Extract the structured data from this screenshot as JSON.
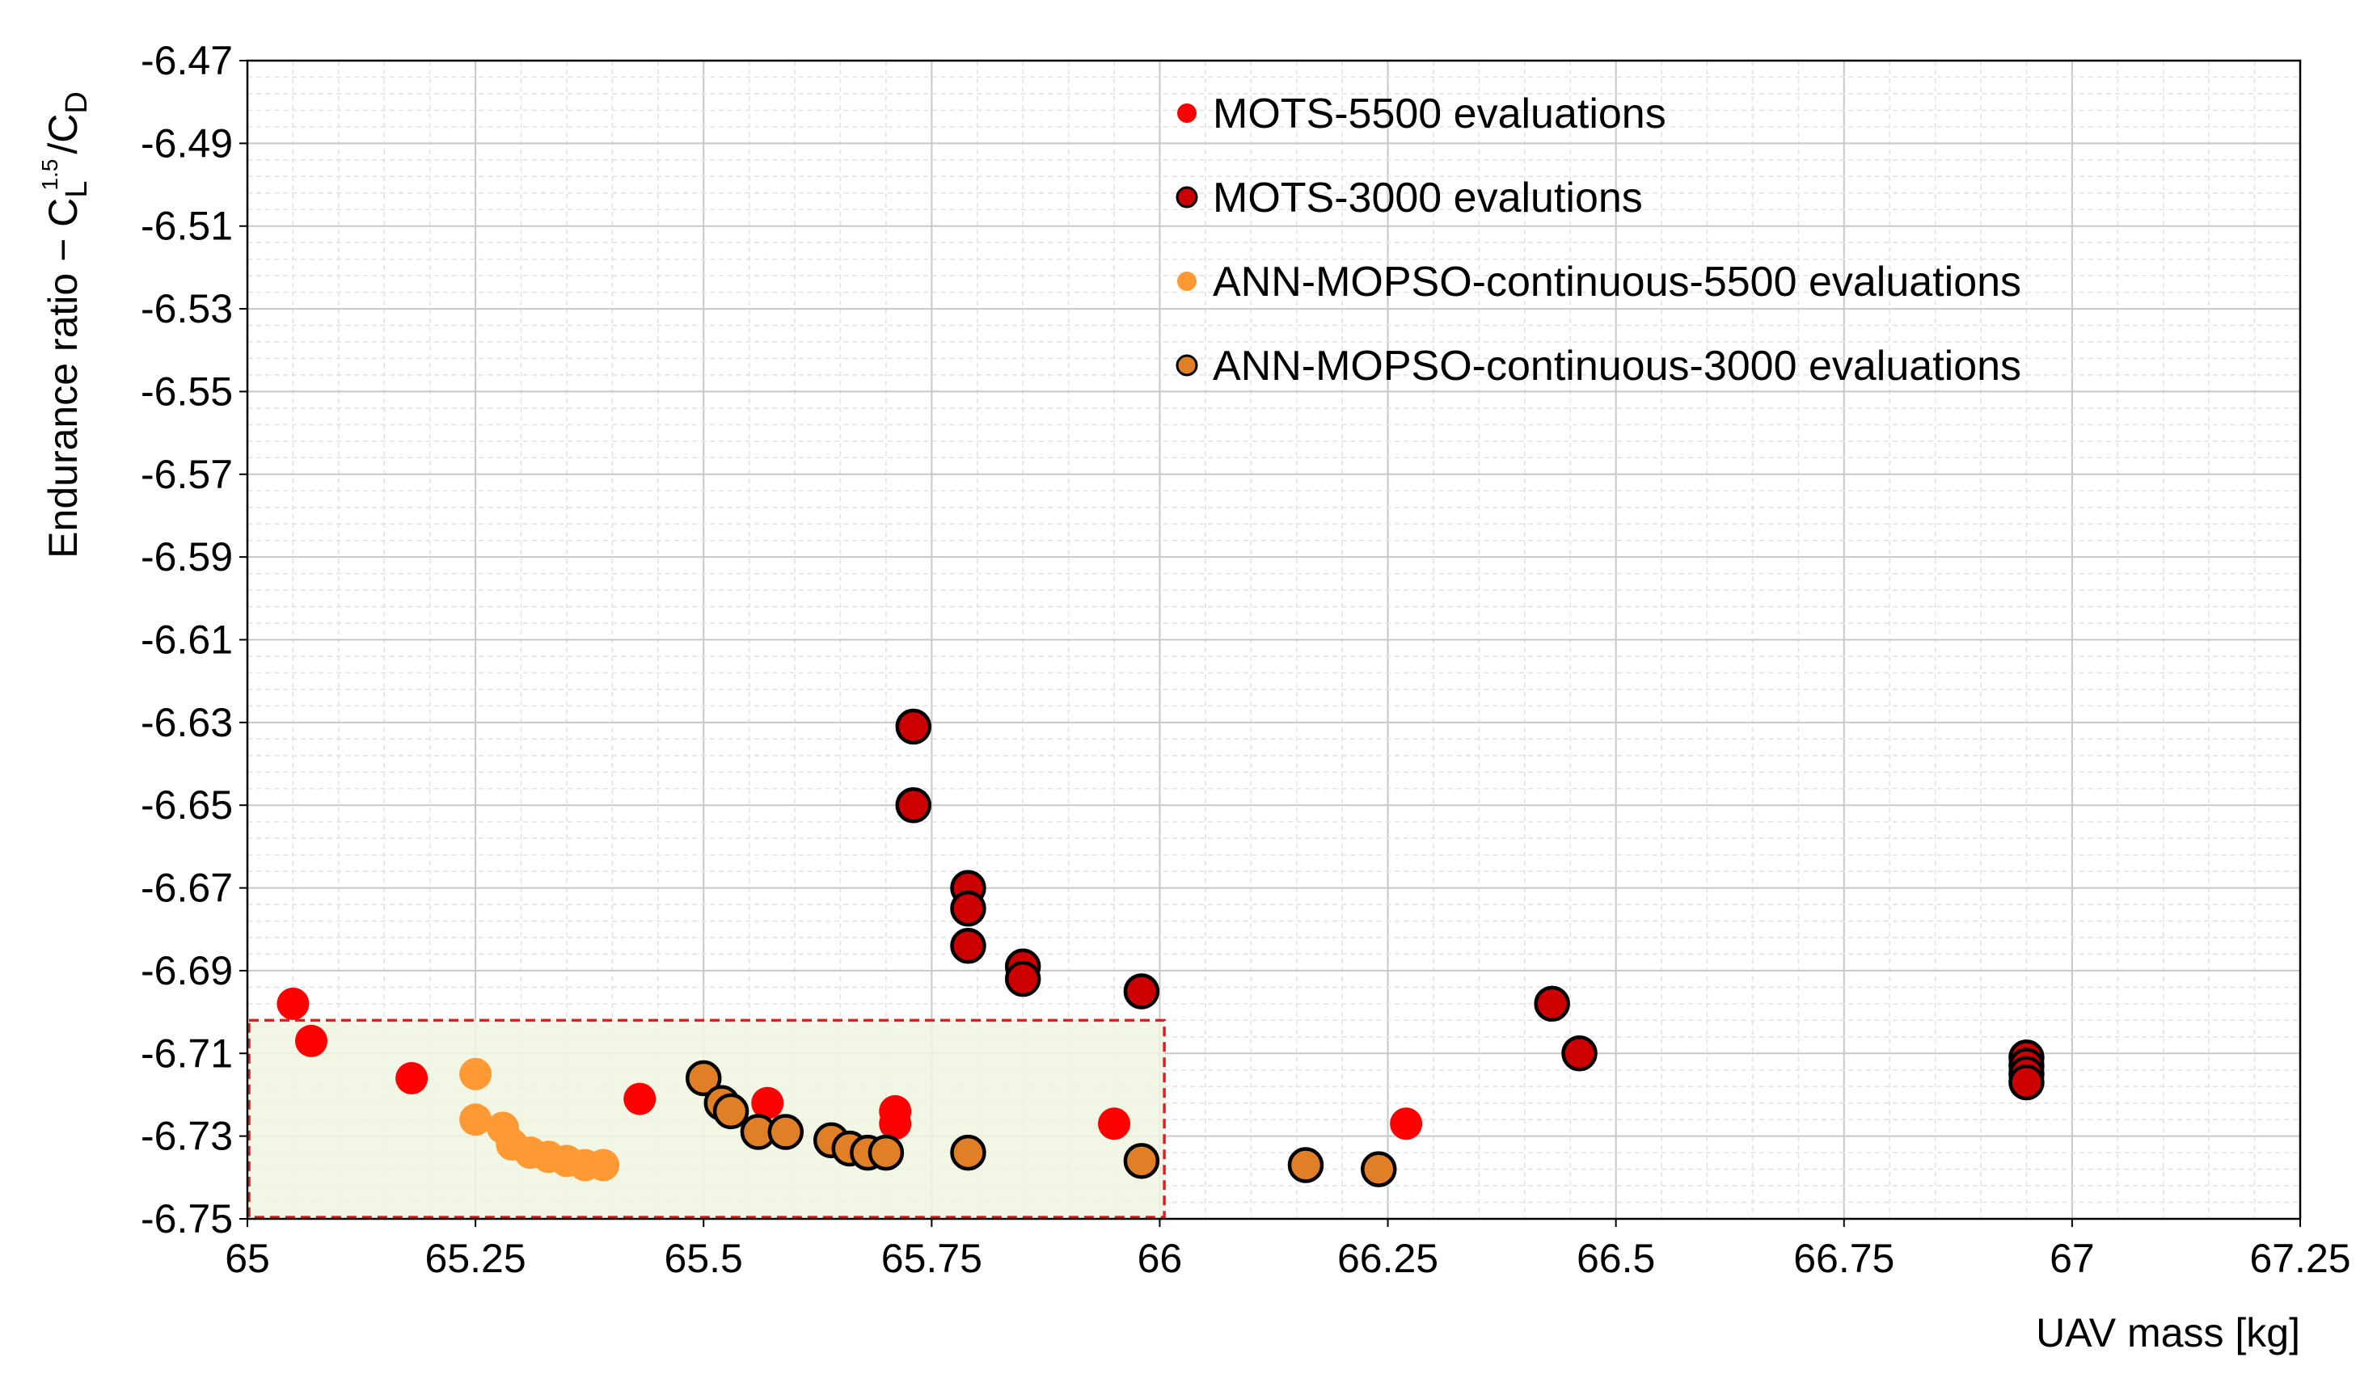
{
  "chart_data": {
    "type": "scatter",
    "title": "",
    "xlabel": "UAV mass [kg]",
    "ylabel": {
      "prefix": "Endurance ratio − C",
      "sub_l": "L",
      "sup": "1.5",
      "mid": "/C",
      "sub_d": "D"
    },
    "xlim": [
      65,
      67.25
    ],
    "ylim": [
      -6.75,
      -6.47
    ],
    "x_ticks": [
      {
        "value": 65,
        "label": "65"
      },
      {
        "value": 65.25,
        "label": "65.25"
      },
      {
        "value": 65.5,
        "label": "65.5"
      },
      {
        "value": 65.75,
        "label": "65.75"
      },
      {
        "value": 66,
        "label": "66"
      },
      {
        "value": 66.25,
        "label": "66.25"
      },
      {
        "value": 66.5,
        "label": "66.5"
      },
      {
        "value": 66.75,
        "label": "66.75"
      },
      {
        "value": 67,
        "label": "67"
      },
      {
        "value": 67.25,
        "label": "67.25"
      }
    ],
    "y_ticks": [
      {
        "value": -6.47,
        "label": "-6.47"
      },
      {
        "value": -6.49,
        "label": "-6.49"
      },
      {
        "value": -6.51,
        "label": "-6.51"
      },
      {
        "value": -6.53,
        "label": "-6.53"
      },
      {
        "value": -6.55,
        "label": "-6.55"
      },
      {
        "value": -6.57,
        "label": "-6.57"
      },
      {
        "value": -6.59,
        "label": "-6.59"
      },
      {
        "value": -6.61,
        "label": "-6.61"
      },
      {
        "value": -6.63,
        "label": "-6.63"
      },
      {
        "value": -6.65,
        "label": "-6.65"
      },
      {
        "value": -6.67,
        "label": "-6.67"
      },
      {
        "value": -6.69,
        "label": "-6.69"
      },
      {
        "value": -6.71,
        "label": "-6.71"
      },
      {
        "value": -6.73,
        "label": "-6.73"
      },
      {
        "value": -6.75,
        "label": "-6.75"
      }
    ],
    "grid": {
      "major": true,
      "minor": true
    },
    "highlight_region": {
      "x": [
        65,
        66.005
      ],
      "y": [
        -6.75,
        -6.702
      ],
      "fill": "#eef5e0",
      "stroke": "#e01f1f"
    },
    "legend_position": "top-right",
    "series": [
      {
        "name": "MOTS-5500 evaluations",
        "color": "#ff0000",
        "outlined": false,
        "x": [
          65.05,
          65.07,
          65.18,
          65.43,
          65.57,
          65.71,
          65.71,
          65.95,
          66.27
        ],
        "y": [
          -6.698,
          -6.707,
          -6.716,
          -6.721,
          -6.722,
          -6.724,
          -6.727,
          -6.727,
          -6.727
        ]
      },
      {
        "name": "MOTS-3000 evalutions",
        "color": "#cc0000",
        "outlined": true,
        "x": [
          65.73,
          65.73,
          65.79,
          65.79,
          65.79,
          65.85,
          65.85,
          65.98,
          66.43,
          66.46,
          66.95,
          66.95,
          66.95,
          66.95
        ],
        "y": [
          -6.631,
          -6.65,
          -6.67,
          -6.675,
          -6.684,
          -6.689,
          -6.692,
          -6.695,
          -6.698,
          -6.71,
          -6.711,
          -6.713,
          -6.715,
          -6.717
        ]
      },
      {
        "name": "ANN-MOPSO-continuous-5500 evaluations",
        "color": "#ff9933",
        "outlined": false,
        "x": [
          65.25,
          65.25,
          65.28,
          65.29,
          65.31,
          65.33,
          65.35,
          65.37,
          65.39
        ],
        "y": [
          -6.715,
          -6.726,
          -6.728,
          -6.732,
          -6.734,
          -6.735,
          -6.736,
          -6.737,
          -6.737
        ]
      },
      {
        "name": "ANN-MOPSO-continuous-3000 evaluations",
        "color": "#e07f26",
        "outlined": true,
        "x": [
          65.5,
          65.52,
          65.53,
          65.56,
          65.59,
          65.64,
          65.66,
          65.68,
          65.7,
          65.79,
          65.98,
          66.16,
          66.24
        ],
        "y": [
          -6.716,
          -6.722,
          -6.724,
          -6.729,
          -6.729,
          -6.731,
          -6.733,
          -6.734,
          -6.734,
          -6.734,
          -6.736,
          -6.737,
          -6.738
        ]
      }
    ]
  }
}
